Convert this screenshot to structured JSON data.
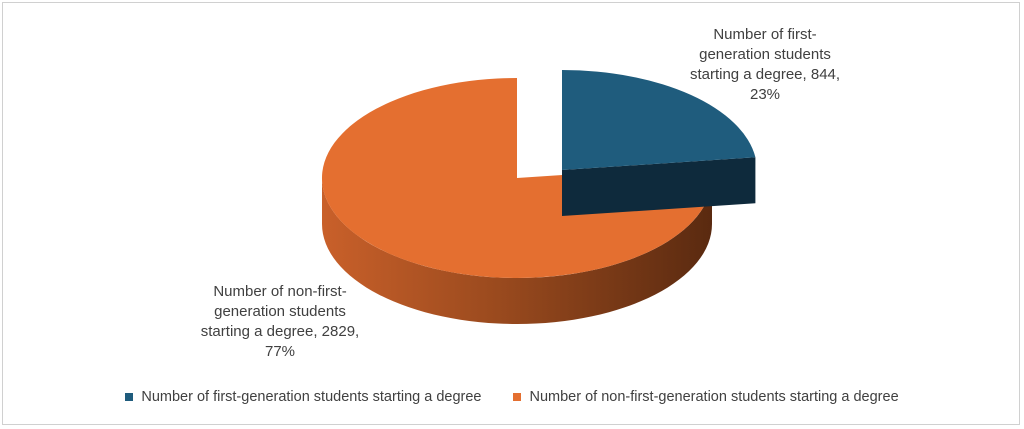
{
  "chart_data": {
    "type": "pie",
    "title": "",
    "categories": [
      "Number of first-generation students starting a degree",
      "Number of non-first-generation students starting a degree"
    ],
    "values": [
      844,
      2829
    ],
    "percents": [
      "23%",
      "77%"
    ],
    "colors": [
      "#1f5c7d",
      "#e46f30"
    ],
    "data_labels": [
      [
        "Number of first-",
        "generation students",
        "starting a degree, 844,",
        "23%"
      ],
      [
        "Number of non-first-",
        "generation students",
        "starting a degree, 2829,",
        "77%"
      ]
    ],
    "legend_position": "bottom",
    "exploded_slice": 0,
    "style": "3d"
  },
  "legend": {
    "items": [
      {
        "label": "Number of first-generation students starting a degree",
        "color": "#1f5c7d"
      },
      {
        "label": "Number of non-first-generation students starting a degree",
        "color": "#e46f30"
      }
    ]
  }
}
